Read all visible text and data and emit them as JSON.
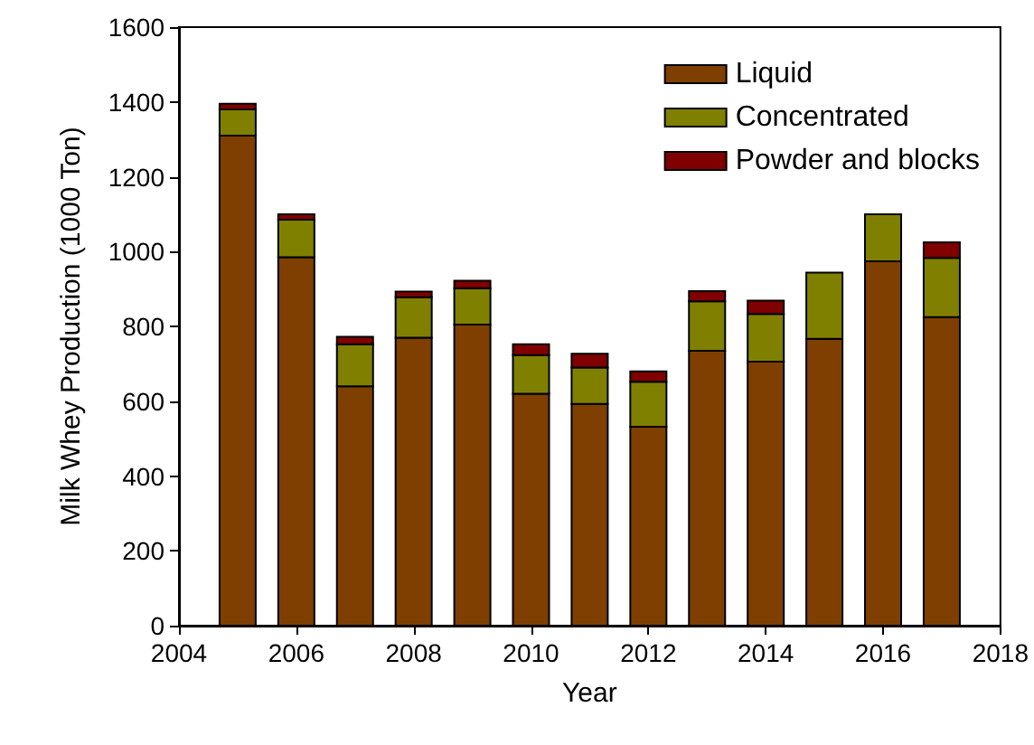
{
  "chart_data": {
    "type": "bar",
    "stacked": true,
    "xlabel": "Year",
    "ylabel": "Milk Whey Production (1000 Ton)",
    "x": [
      2005,
      2006,
      2007,
      2008,
      2009,
      2010,
      2011,
      2012,
      2013,
      2014,
      2015,
      2016,
      2017
    ],
    "xlim": [
      2004,
      2018
    ],
    "xticks": [
      2004,
      2006,
      2008,
      2010,
      2012,
      2014,
      2016,
      2018
    ],
    "ylim": [
      0,
      1600
    ],
    "yticks": [
      0,
      200,
      400,
      600,
      800,
      1000,
      1200,
      1400,
      1600
    ],
    "series": [
      {
        "name": "Liquid",
        "color": "#7f3f00",
        "values": [
          1310,
          985,
          640,
          770,
          805,
          620,
          593,
          532,
          735,
          706,
          767,
          974,
          825
        ]
      },
      {
        "name": "Concentrated",
        "color": "#808000",
        "values": [
          70,
          100,
          112,
          108,
          97,
          103,
          97,
          120,
          132,
          127,
          177,
          126,
          158
        ]
      },
      {
        "name": "Powder and blocks",
        "color": "#800000",
        "values": [
          15,
          15,
          20,
          15,
          20,
          29,
          37,
          28,
          27,
          36,
          null,
          null,
          42
        ]
      }
    ],
    "legend": "top right",
    "grid": false
  }
}
